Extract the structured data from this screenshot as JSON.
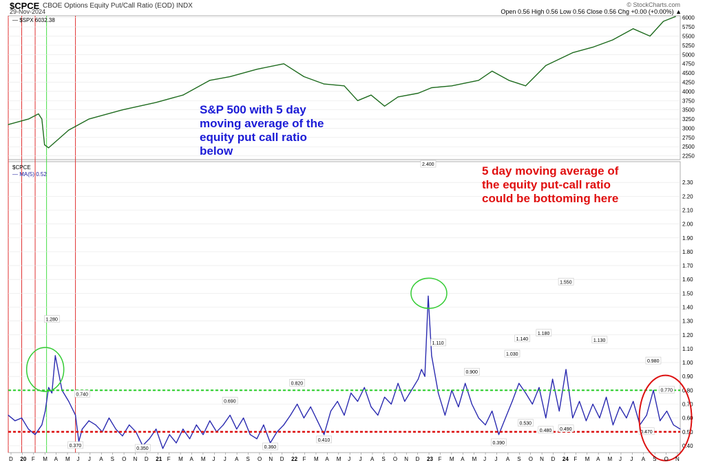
{
  "header": {
    "symbol": "$CPCE",
    "description": "CBOE Options Equity Put/Call Ratio (EOD)  INDX",
    "date": "29-Nov-2024",
    "watermark": "© StockCharts.com",
    "ohlc": "Open 0.56  High 0.56  Low 0.56  Close 0.56  Chg +0.00 (+0.00%) ▲"
  },
  "legend": {
    "spx": "— $SPX 6032.38",
    "cpce_title": "$CPCE",
    "cpce_ma": "— MA(5) 0.52"
  },
  "annotations": {
    "blue": "S&P 500 with 5 day moving average of the equity put call ratio below",
    "red": "5 day moving average of the equity put-call ratio could be bottoming here"
  },
  "colors": {
    "spx_line": "#1e6b1e",
    "ma_line": "#2b2bb0",
    "green_hline": "#22cc22",
    "red_hline": "#dd1111",
    "red_vline": "#e03030",
    "green_vline": "#44dd44",
    "grid": "#e6e6e6"
  },
  "chart_data": [
    {
      "type": "line",
      "name": "$SPX",
      "yticks": [
        2250,
        2500,
        2750,
        3000,
        3250,
        3500,
        3750,
        4000,
        4250,
        4500,
        4750,
        5000,
        5250,
        5500,
        5750,
        6000
      ],
      "ylim": [
        2150,
        6050
      ],
      "x": [
        0,
        0.03,
        0.045,
        0.05,
        0.054,
        0.06,
        0.09,
        0.12,
        0.17,
        0.22,
        0.26,
        0.3,
        0.33,
        0.37,
        0.41,
        0.44,
        0.47,
        0.5,
        0.52,
        0.54,
        0.56,
        0.58,
        0.61,
        0.63,
        0.66,
        0.7,
        0.72,
        0.745,
        0.77,
        0.8,
        0.84,
        0.87,
        0.9,
        0.93,
        0.955,
        0.975,
        0.993
      ],
      "values": [
        3100,
        3250,
        3390,
        3250,
        2550,
        2470,
        2950,
        3250,
        3500,
        3700,
        3900,
        4300,
        4400,
        4600,
        4750,
        4400,
        4200,
        4150,
        3750,
        3900,
        3600,
        3850,
        3950,
        4100,
        4150,
        4300,
        4550,
        4300,
        4150,
        4700,
        5050,
        5200,
        5400,
        5700,
        5500,
        5900,
        6032
      ]
    },
    {
      "type": "line",
      "name": "MA(5)",
      "yticks": [
        0.4,
        0.5,
        0.6,
        0.7,
        0.8,
        0.9,
        1.0,
        1.1,
        1.2,
        1.3,
        1.4,
        1.5,
        1.6,
        1.7,
        1.8,
        1.9,
        2.0,
        2.1,
        2.2,
        2.3
      ],
      "ylim": [
        0.35,
        2.45
      ],
      "hlines": [
        0.8,
        0.5
      ],
      "peak_labels": [
        {
          "x": 0.065,
          "text": "1.280",
          "v": 1.28
        },
        {
          "x": 0.11,
          "text": "0.740",
          "v": 0.74
        },
        {
          "x": 0.1,
          "text": "0.370",
          "v": 0.37
        },
        {
          "x": 0.2,
          "text": "0.350",
          "v": 0.35
        },
        {
          "x": 0.33,
          "text": "0.690",
          "v": 0.69
        },
        {
          "x": 0.39,
          "text": "0.360",
          "v": 0.36
        },
        {
          "x": 0.43,
          "text": "0.820",
          "v": 0.82
        },
        {
          "x": 0.47,
          "text": "0.410",
          "v": 0.41
        },
        {
          "x": 0.625,
          "text": "2.400",
          "v": 2.4
        },
        {
          "x": 0.64,
          "text": "1.110",
          "v": 1.11
        },
        {
          "x": 0.69,
          "text": "0.900",
          "v": 0.9
        },
        {
          "x": 0.73,
          "text": "0.390",
          "v": 0.39
        },
        {
          "x": 0.75,
          "text": "1.030",
          "v": 1.03
        },
        {
          "x": 0.77,
          "text": "0.530",
          "v": 0.53
        },
        {
          "x": 0.765,
          "text": "1.140",
          "v": 1.14
        },
        {
          "x": 0.797,
          "text": "1.180",
          "v": 1.18
        },
        {
          "x": 0.8,
          "text": "0.480",
          "v": 0.48
        },
        {
          "x": 0.83,
          "text": "0.490",
          "v": 0.49
        },
        {
          "x": 0.83,
          "text": "1.550",
          "v": 1.55
        },
        {
          "x": 0.88,
          "text": "1.130",
          "v": 1.13
        },
        {
          "x": 0.95,
          "text": "0.470",
          "v": 0.47
        },
        {
          "x": 0.96,
          "text": "0.980",
          "v": 0.98
        },
        {
          "x": 0.98,
          "text": "0.770",
          "v": 0.77
        }
      ],
      "x": [
        0,
        0.01,
        0.02,
        0.03,
        0.04,
        0.05,
        0.055,
        0.06,
        0.065,
        0.07,
        0.08,
        0.09,
        0.1,
        0.105,
        0.11,
        0.12,
        0.13,
        0.14,
        0.15,
        0.16,
        0.17,
        0.18,
        0.19,
        0.2,
        0.21,
        0.22,
        0.23,
        0.24,
        0.25,
        0.26,
        0.27,
        0.28,
        0.29,
        0.3,
        0.31,
        0.32,
        0.33,
        0.34,
        0.35,
        0.36,
        0.37,
        0.38,
        0.39,
        0.4,
        0.41,
        0.42,
        0.43,
        0.44,
        0.45,
        0.46,
        0.47,
        0.48,
        0.49,
        0.5,
        0.51,
        0.52,
        0.53,
        0.54,
        0.55,
        0.56,
        0.57,
        0.58,
        0.59,
        0.6,
        0.61,
        0.615,
        0.62,
        0.625,
        0.63,
        0.64,
        0.65,
        0.66,
        0.67,
        0.68,
        0.69,
        0.7,
        0.71,
        0.72,
        0.73,
        0.74,
        0.75,
        0.76,
        0.77,
        0.78,
        0.79,
        0.8,
        0.81,
        0.82,
        0.83,
        0.84,
        0.85,
        0.86,
        0.87,
        0.88,
        0.89,
        0.9,
        0.91,
        0.92,
        0.93,
        0.94,
        0.95,
        0.96,
        0.97,
        0.98,
        0.99,
        1.0
      ],
      "values": [
        0.62,
        0.58,
        0.6,
        0.52,
        0.48,
        0.55,
        0.65,
        0.82,
        0.78,
        1.05,
        0.8,
        0.72,
        0.62,
        0.43,
        0.52,
        0.58,
        0.55,
        0.5,
        0.6,
        0.52,
        0.47,
        0.55,
        0.5,
        0.4,
        0.45,
        0.52,
        0.38,
        0.48,
        0.42,
        0.52,
        0.45,
        0.55,
        0.48,
        0.58,
        0.5,
        0.55,
        0.62,
        0.52,
        0.6,
        0.48,
        0.45,
        0.55,
        0.42,
        0.5,
        0.55,
        0.62,
        0.7,
        0.6,
        0.68,
        0.58,
        0.48,
        0.65,
        0.72,
        0.62,
        0.78,
        0.72,
        0.82,
        0.68,
        0.62,
        0.75,
        0.7,
        0.85,
        0.72,
        0.8,
        0.88,
        0.95,
        0.9,
        1.48,
        1.05,
        0.78,
        0.62,
        0.8,
        0.68,
        0.85,
        0.7,
        0.6,
        0.55,
        0.65,
        0.48,
        0.6,
        0.72,
        0.85,
        0.78,
        0.7,
        0.82,
        0.6,
        0.88,
        0.65,
        0.95,
        0.6,
        0.72,
        0.58,
        0.7,
        0.6,
        0.75,
        0.55,
        0.68,
        0.6,
        0.72,
        0.55,
        0.62,
        0.8,
        0.58,
        0.65,
        0.55,
        0.52
      ]
    }
  ],
  "xaxis": {
    "labels": [
      "D",
      "20",
      "F",
      "M",
      "A",
      "M",
      "J",
      "J",
      "A",
      "S",
      "O",
      "N",
      "D",
      "21",
      "F",
      "M",
      "A",
      "M",
      "J",
      "J",
      "A",
      "S",
      "O",
      "N",
      "D",
      "22",
      "F",
      "M",
      "A",
      "M",
      "J",
      "J",
      "A",
      "S",
      "O",
      "N",
      "D",
      "23",
      "F",
      "M",
      "A",
      "M",
      "J",
      "J",
      "A",
      "S",
      "O",
      "N",
      "D",
      "24",
      "F",
      "M",
      "A",
      "M",
      "J",
      "J",
      "A",
      "S",
      "O",
      "N"
    ],
    "bold": [
      "20",
      "21",
      "22",
      "23",
      "24"
    ]
  }
}
